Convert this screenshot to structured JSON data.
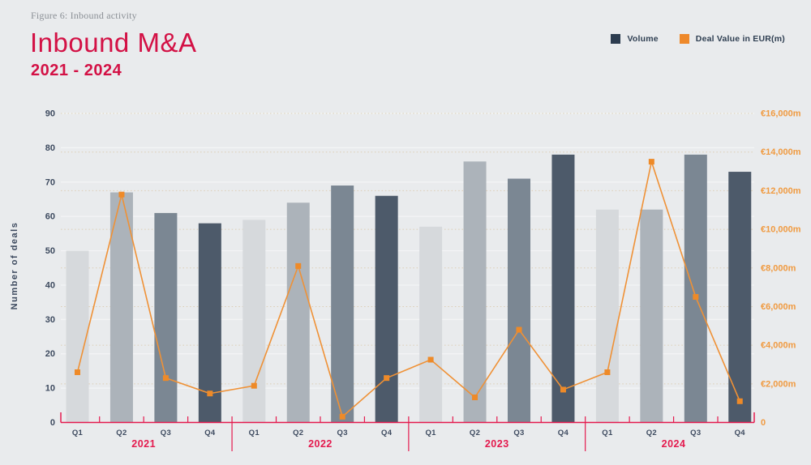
{
  "page": {
    "figure_caption": "Figure 6: Inbound activity",
    "title": "Inbound M&A",
    "subtitle": "2021 - 2024"
  },
  "legend": {
    "items": [
      {
        "label": "Volume",
        "color": "#2c3c4f"
      },
      {
        "label": "Deal Value in EUR(m)",
        "color": "#ee892b"
      }
    ]
  },
  "chart_data": {
    "type": "bar",
    "title": "Inbound M&A 2021 - 2024",
    "years": [
      "2021",
      "2022",
      "2023",
      "2024"
    ],
    "quarters": [
      "Q1",
      "Q2",
      "Q3",
      "Q4"
    ],
    "series": [
      {
        "name": "Volume",
        "type": "bar",
        "axis": "left",
        "values": [
          50,
          67,
          61,
          58,
          59,
          64,
          69,
          66,
          57,
          76,
          71,
          78,
          62,
          62,
          78,
          73
        ]
      },
      {
        "name": "Deal Value in EUR(m)",
        "type": "line",
        "axis": "right",
        "values": [
          2600,
          11800,
          2300,
          1500,
          1900,
          8100,
          300,
          2300,
          3250,
          1300,
          4800,
          1700,
          2600,
          13500,
          6500,
          1100
        ]
      }
    ],
    "left_axis": {
      "label": "Number of deals",
      "min": 0,
      "max": 90,
      "step": 10
    },
    "right_axis": {
      "label": "Deal Value in EUR(m)",
      "min": 0,
      "max": 16000,
      "step": 2000,
      "tick_labels": [
        "0",
        "€2,000m",
        "€4,000m",
        "€6,000m",
        "€8,000m",
        "€10,000m",
        "€12,000m",
        "€14,000m",
        "€16,000m"
      ]
    },
    "legend_position": "top-right",
    "grid": {
      "left_gridlines": "solid",
      "right_gridlines": "dotted-orange"
    },
    "bar_colors_by_quarter": [
      "#d6d9dc",
      "#acb3ba",
      "#7b8793",
      "#4d5a6a"
    ],
    "line_color": "#ef9136",
    "marker_color": "#ee8a28",
    "axis_color": "#e41a4e"
  }
}
